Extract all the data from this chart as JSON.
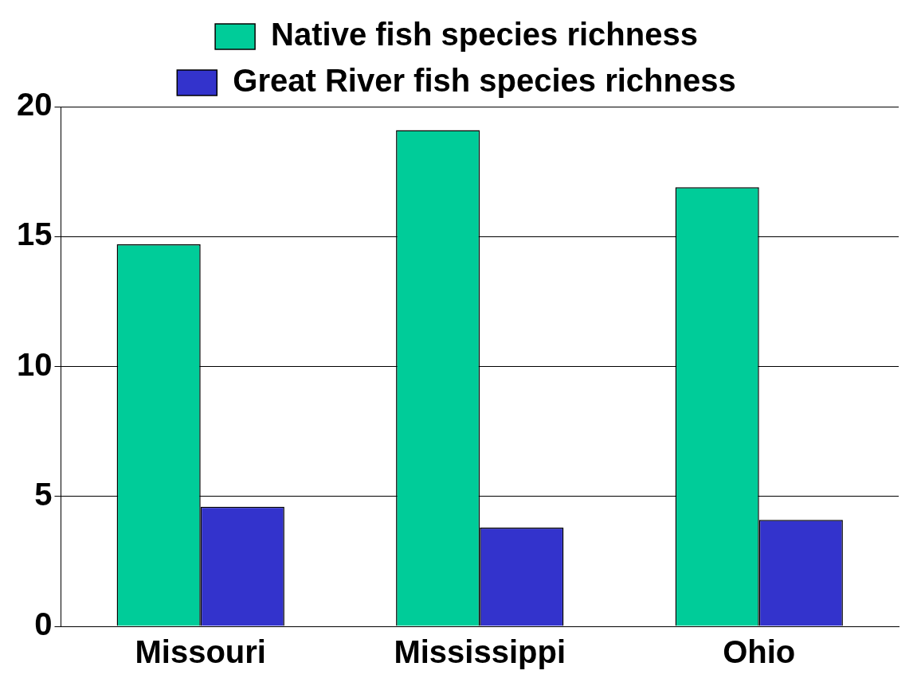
{
  "chart_data": {
    "type": "bar",
    "categories": [
      "Missouri",
      "Mississippi",
      "Ohio"
    ],
    "series": [
      {
        "name": "Native fish species richness",
        "color": "#00cc99",
        "values": [
          14.7,
          19.1,
          16.9
        ]
      },
      {
        "name": "Great River fish species richness",
        "color": "#3333cc",
        "values": [
          4.6,
          3.8,
          4.1
        ]
      }
    ],
    "ylim": [
      0,
      20
    ],
    "yticks": [
      0,
      5,
      10,
      15,
      20
    ],
    "grid": "y",
    "legend": "top"
  }
}
